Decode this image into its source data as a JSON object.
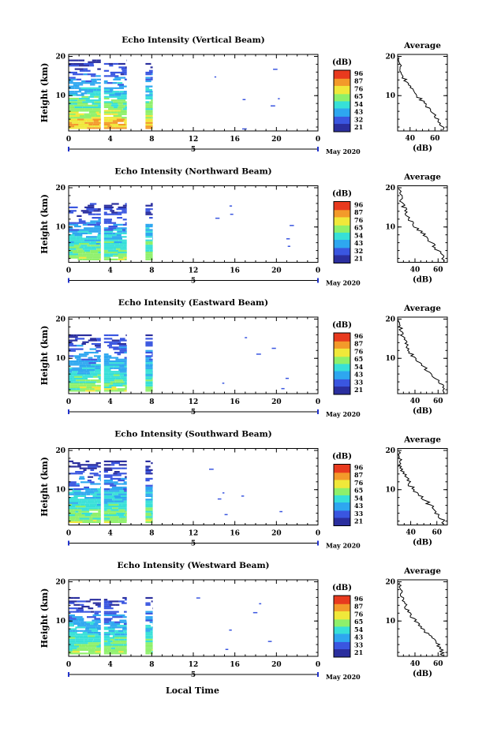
{
  "chart_data": {
    "type": "heatmap",
    "xlabel": "Local Time",
    "date_label": "May 2020",
    "date_day": "5",
    "x_ticks": [
      "0",
      "4",
      "8",
      "12",
      "16",
      "20",
      "0"
    ],
    "y_ticks": [
      "20",
      "10"
    ],
    "ylabel": "Height (km)",
    "colorbar_unit": "(dB)",
    "colormap": [
      "#2b2f9e",
      "#3a56e0",
      "#2ea7f0",
      "#37e0d8",
      "#8ef06a",
      "#f0e83a",
      "#f39a2a",
      "#e83a1e"
    ],
    "profile_title": "Average",
    "profile_xlabel": "(dB)",
    "profile_y_ticks": [
      "20",
      "10"
    ],
    "panels": [
      {
        "title": "Echo Intensity (Vertical Beam)",
        "colorbar_ticks": [
          "96",
          "87",
          "76",
          "65",
          "54",
          "43",
          "32",
          "21"
        ],
        "data_blocks_hours": [
          [
            0,
            3.1
          ],
          [
            3.4,
            5.6
          ],
          [
            7.4,
            8.1
          ]
        ],
        "top_km": 19,
        "profile_x_ticks": [
          "40",
          "60"
        ],
        "profile_xlim": [
          30,
          70
        ],
        "profile": {
          "height_km": [
            2,
            4,
            6,
            8,
            10,
            12,
            14,
            16,
            18,
            20
          ],
          "db": [
            66,
            62,
            57,
            52,
            45,
            40,
            36,
            33,
            31,
            30
          ]
        }
      },
      {
        "title": "Echo Intensity (Northward Beam)",
        "colorbar_ticks": [
          "96",
          "87",
          "76",
          "65",
          "54",
          "43",
          "32",
          "21"
        ],
        "data_blocks_hours": [
          [
            0,
            3.1
          ],
          [
            3.4,
            5.6
          ],
          [
            7.4,
            8.1
          ]
        ],
        "top_km": 16,
        "profile_x_ticks": [
          "40",
          "60"
        ],
        "profile_xlim": [
          25,
          68
        ],
        "profile": {
          "height_km": [
            2,
            4,
            6,
            8,
            10,
            12,
            14,
            16,
            18,
            20
          ],
          "db": [
            65,
            60,
            54,
            48,
            40,
            35,
            32,
            29,
            27,
            26
          ]
        }
      },
      {
        "title": "Echo Intensity (Eastward Beam)",
        "colorbar_ticks": [
          "96",
          "87",
          "76",
          "65",
          "54",
          "43",
          "33",
          "21"
        ],
        "data_blocks_hours": [
          [
            0,
            3.1
          ],
          [
            3.4,
            5.6
          ],
          [
            7.4,
            8.1
          ]
        ],
        "top_km": 16,
        "profile_x_ticks": [
          "40",
          "60"
        ],
        "profile_xlim": [
          25,
          68
        ],
        "profile": {
          "height_km": [
            2,
            4,
            6,
            8,
            10,
            12,
            14,
            16,
            18,
            20
          ],
          "db": [
            65,
            61,
            54,
            47,
            39,
            35,
            32,
            29,
            27,
            26
          ]
        }
      },
      {
        "title": "Echo Intensity (Southward Beam)",
        "colorbar_ticks": [
          "96",
          "87",
          "76",
          "65",
          "54",
          "43",
          "33",
          "21"
        ],
        "data_blocks_hours": [
          [
            0,
            3.1
          ],
          [
            3.4,
            5.6
          ],
          [
            7.4,
            8.1
          ]
        ],
        "top_km": 17,
        "profile_x_ticks": [
          "40",
          "60"
        ],
        "profile_xlim": [
          30,
          68
        ],
        "profile": {
          "height_km": [
            2,
            4,
            6,
            8,
            10,
            12,
            14,
            16,
            18,
            20
          ],
          "db": [
            65,
            60,
            55,
            49,
            42,
            38,
            35,
            33,
            31,
            31
          ]
        }
      },
      {
        "title": "Echo Intensity (Westward Beam)",
        "colorbar_ticks": [
          "96",
          "87",
          "76",
          "65",
          "54",
          "43",
          "33",
          "21"
        ],
        "data_blocks_hours": [
          [
            0,
            3.1
          ],
          [
            3.4,
            5.6
          ],
          [
            7.4,
            8.1
          ]
        ],
        "top_km": 16,
        "profile_x_ticks": [
          "40",
          "60"
        ],
        "profile_xlim": [
          25,
          68
        ],
        "profile": {
          "height_km": [
            2,
            4,
            6,
            8,
            10,
            12,
            14,
            16,
            18,
            20
          ],
          "db": [
            64,
            60,
            54,
            47,
            40,
            35,
            32,
            29,
            27,
            26
          ]
        }
      }
    ]
  }
}
